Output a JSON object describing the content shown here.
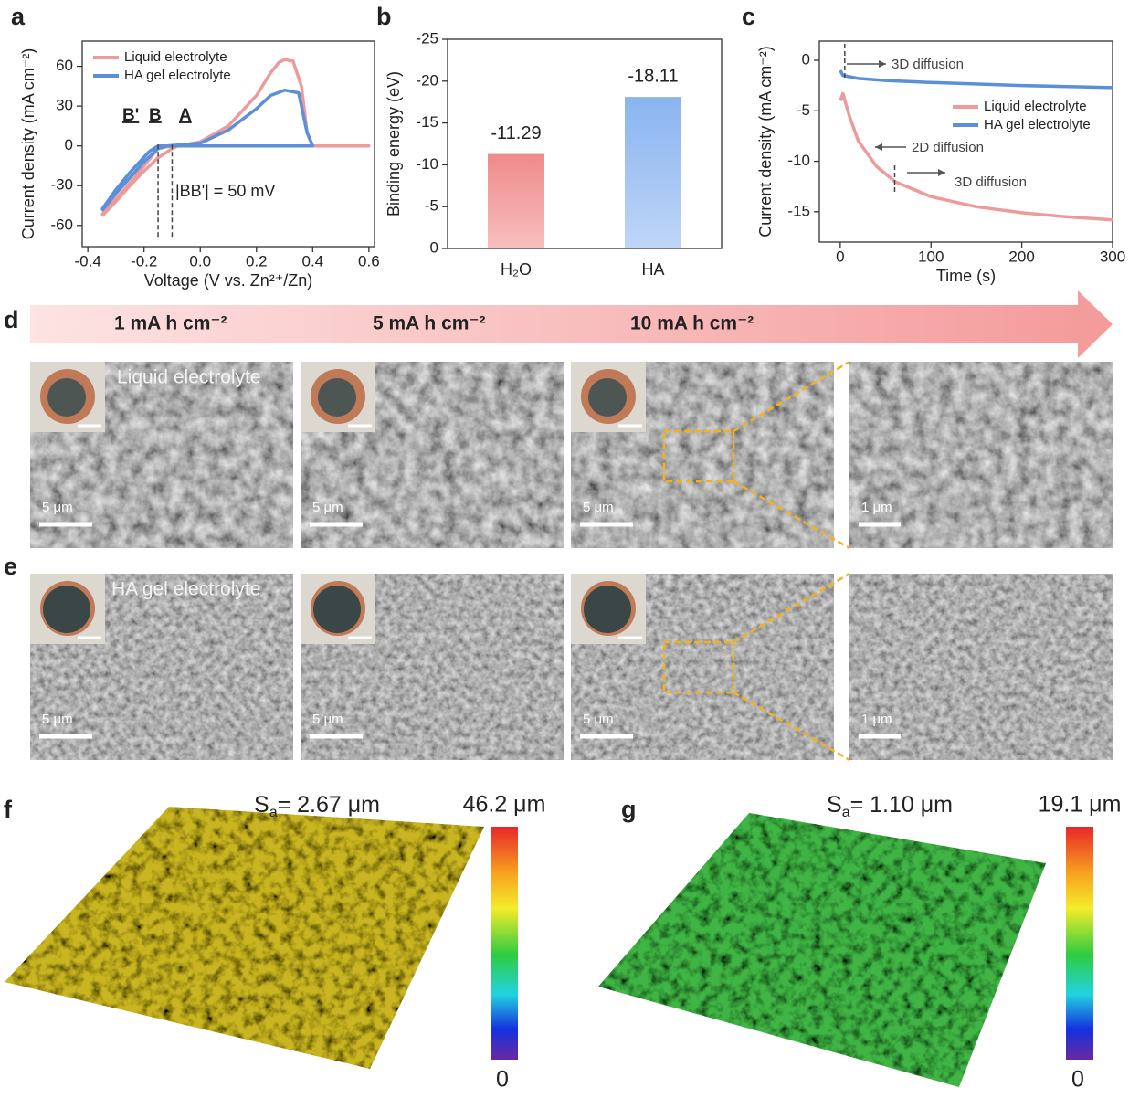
{
  "chart_data": [
    {
      "type": "line",
      "x_label": "Voltage (V vs. Zn²⁺/Zn)",
      "y_label": "Current density (mA cm⁻²)",
      "xlim": [
        -0.42,
        0.62
      ],
      "xticks": [
        -0.4,
        -0.2,
        {
          "value": 0,
          "label": "0.0"
        },
        0.2,
        0.4,
        0.6
      ],
      "ylim": [
        -76,
        79
      ],
      "yticks": [
        -60,
        -30,
        0,
        30,
        60
      ],
      "legend": "upper left",
      "series": [
        {
          "name": "Liquid electrolyte",
          "color": "#ef9a9a",
          "x": [
            -0.35,
            -0.3,
            -0.25,
            -0.2,
            -0.15,
            -0.1,
            -0.08,
            0,
            0.1,
            0.2,
            0.25,
            0.28,
            0.3,
            0.33,
            0.36,
            0.38,
            0.4,
            0.6,
            0.4,
            0.2,
            0,
            -0.1,
            -0.15,
            -0.2,
            -0.25,
            -0.3,
            -0.35
          ],
          "values": [
            -53,
            -42,
            -30,
            -19,
            -9,
            -2,
            0,
            3,
            15,
            38,
            55,
            63,
            65,
            64,
            45,
            10,
            0,
            0,
            0,
            0,
            0,
            0,
            -2,
            -15,
            -28,
            -40,
            -52
          ]
        },
        {
          "name": "HA gel electrolyte",
          "color": "#5b8fd9",
          "x": [
            -0.35,
            -0.3,
            -0.25,
            -0.2,
            -0.15,
            -0.12,
            0,
            0.1,
            0.2,
            0.25,
            0.3,
            0.35,
            0.38,
            0.4,
            0.2,
            0,
            -0.1,
            -0.15,
            -0.18,
            -0.25,
            -0.3,
            -0.35
          ],
          "values": [
            -49,
            -36,
            -24,
            -12,
            -2,
            0,
            2,
            12,
            28,
            38,
            42,
            40,
            10,
            0,
            0,
            0,
            0,
            0,
            -4,
            -20,
            -33,
            -48
          ]
        }
      ],
      "reference_lines": [
        -0.15,
        -0.1
      ],
      "annotations": [
        "B'",
        "B",
        "A",
        "|BB'| = 50 mV"
      ]
    },
    {
      "type": "bar",
      "y_label": "Binding energy (eV)",
      "categories": [
        "H₂O",
        "HA"
      ],
      "values": [
        -11.29,
        -18.11
      ],
      "colors": [
        "#f08a8a",
        "#8ab4f0"
      ],
      "ylim": [
        0,
        -25
      ],
      "yticks": [
        0,
        -5,
        -10,
        -15,
        -20,
        -25
      ]
    },
    {
      "type": "line",
      "x_label": "Time (s)",
      "y_label": "Current density (mA cm⁻²)",
      "xlim": [
        -23,
        300
      ],
      "xticks": [
        0,
        100,
        200,
        300
      ],
      "ylim": [
        -18,
        1.9
      ],
      "yticks": [
        0,
        -5,
        -10,
        -15
      ],
      "legend": "center right",
      "series": [
        {
          "name": "Liquid electrolyte",
          "color": "#ef9a9a",
          "x": [
            0,
            3,
            10,
            20,
            40,
            60,
            100,
            150,
            200,
            250,
            300
          ],
          "values": [
            -4,
            -3.3,
            -5.5,
            -8,
            -10.5,
            -12,
            -13.5,
            -14.5,
            -15.1,
            -15.5,
            -15.8
          ]
        },
        {
          "name": "HA gel electrolyte",
          "color": "#5b8fd9",
          "x": [
            0,
            3,
            20,
            50,
            100,
            200,
            300
          ],
          "values": [
            -1,
            -1.5,
            -1.8,
            -2.0,
            -2.2,
            -2.5,
            -2.7
          ]
        }
      ],
      "reference_lines": [
        5,
        60
      ],
      "annotations": [
        "3D diffusion",
        "2D diffusion",
        "3D diffusion"
      ]
    }
  ],
  "panel_labels": [
    "a",
    "b",
    "c",
    "d",
    "e",
    "f",
    "g"
  ],
  "capacity_labels": [
    "1 mA h cm⁻²",
    "5 mA h cm⁻²",
    "10 mA h cm⁻²"
  ],
  "sem_rows": [
    {
      "label": "Liquid electrolyte",
      "scale_bars": [
        "5 μm",
        "5 μm",
        "5 μm",
        "1 μm"
      ]
    },
    {
      "label": "HA gel electrolyte",
      "scale_bars": [
        "5 μm",
        "5 μm",
        "5 μm",
        "1 μm"
      ]
    }
  ],
  "profiles": [
    {
      "symbol": "S",
      "subscript": "a",
      "value_text": "= 2.67 μm",
      "max": "46.2 μm",
      "min": "0"
    },
    {
      "symbol": "S",
      "subscript": "a",
      "value_text": "= 1.10 μm",
      "max": "19.1 μm",
      "min": "0"
    }
  ]
}
